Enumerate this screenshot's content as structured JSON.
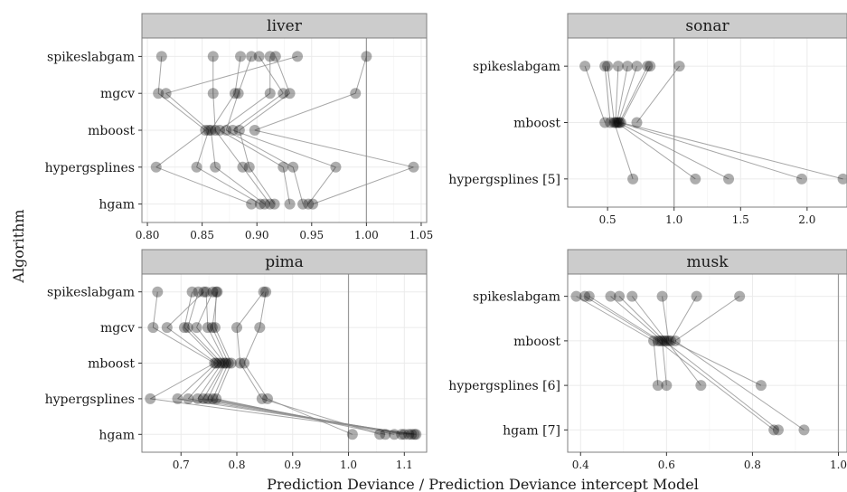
{
  "figure": {
    "xlabel": "Prediction Deviance / Prediction Deviance intercept Model",
    "ylabel": "Algorithm"
  },
  "chart_data": [
    {
      "type": "scatter",
      "title": "liver",
      "categories": [
        "spikeslabgam",
        "mgcv",
        "mboost",
        "hypergsplines",
        "hgam"
      ],
      "xticks": [
        "0.80",
        "0.85",
        "0.90",
        "0.95",
        "1.00",
        "1.05"
      ],
      "xticks_values": [
        0.8,
        0.85,
        0.9,
        0.95,
        1.0,
        1.05
      ],
      "xlim": [
        0.795,
        1.055
      ],
      "reference_line": 1.0,
      "points": {
        "spikeslabgam": [
          0.813,
          0.86,
          0.885,
          0.895,
          0.902,
          0.912,
          0.917,
          0.937,
          1.0
        ],
        "mgcv": [
          0.81,
          0.817,
          0.86,
          0.88,
          0.883,
          0.912,
          0.924,
          0.93,
          0.99
        ],
        "mboost": [
          0.853,
          0.856,
          0.858,
          0.862,
          0.866,
          0.872,
          0.878,
          0.884,
          0.898
        ],
        "hypergsplines": [
          0.808,
          0.845,
          0.862,
          0.887,
          0.893,
          0.924,
          0.933,
          0.972,
          1.043
        ],
        "hgam": [
          0.895,
          0.903,
          0.907,
          0.912,
          0.916,
          0.93,
          0.942,
          0.947,
          0.951
        ]
      },
      "links": [
        [
          "spikeslabgam",
          0.813,
          "mgcv",
          0.81
        ],
        [
          "spikeslabgam",
          0.86,
          "mgcv",
          0.86
        ],
        [
          "spikeslabgam",
          0.885,
          "mgcv",
          0.88
        ],
        [
          "spikeslabgam",
          0.895,
          "mgcv",
          0.883
        ],
        [
          "spikeslabgam",
          0.902,
          "mgcv",
          0.924
        ],
        [
          "spikeslabgam",
          0.912,
          "mgcv",
          0.912
        ],
        [
          "spikeslabgam",
          0.917,
          "mgcv",
          0.93
        ],
        [
          "spikeslabgam",
          0.937,
          "mgcv",
          0.817
        ],
        [
          "spikeslabgam",
          1.0,
          "mgcv",
          0.99
        ],
        [
          "mgcv",
          0.81,
          "mboost",
          0.853
        ],
        [
          "mgcv",
          0.817,
          "mboost",
          0.856
        ],
        [
          "mgcv",
          0.86,
          "mboost",
          0.862
        ],
        [
          "mgcv",
          0.88,
          "mboost",
          0.858
        ],
        [
          "mgcv",
          0.883,
          "mboost",
          0.872
        ],
        [
          "mgcv",
          0.912,
          "mboost",
          0.866
        ],
        [
          "mgcv",
          0.924,
          "mboost",
          0.878
        ],
        [
          "mgcv",
          0.93,
          "mboost",
          0.884
        ],
        [
          "mgcv",
          0.99,
          "mboost",
          0.898
        ],
        [
          "mboost",
          0.853,
          "hypergsplines",
          0.808
        ],
        [
          "mboost",
          0.856,
          "hypergsplines",
          0.845
        ],
        [
          "mboost",
          0.858,
          "hypergsplines",
          0.862
        ],
        [
          "mboost",
          0.862,
          "hypergsplines",
          0.887
        ],
        [
          "mboost",
          0.866,
          "hypergsplines",
          0.924
        ],
        [
          "mboost",
          0.872,
          "hypergsplines",
          0.933
        ],
        [
          "mboost",
          0.878,
          "hypergsplines",
          0.972
        ],
        [
          "mboost",
          0.884,
          "hypergsplines",
          0.893
        ],
        [
          "mboost",
          0.898,
          "hypergsplines",
          1.043
        ],
        [
          "hypergsplines",
          0.808,
          "hgam",
          0.895
        ],
        [
          "hypergsplines",
          0.845,
          "hgam",
          0.903
        ],
        [
          "hypergsplines",
          0.862,
          "hgam",
          0.907
        ],
        [
          "hypergsplines",
          0.887,
          "hgam",
          0.912
        ],
        [
          "hypergsplines",
          0.893,
          "hgam",
          0.916
        ],
        [
          "hypergsplines",
          0.924,
          "hgam",
          0.93
        ],
        [
          "hypergsplines",
          0.933,
          "hgam",
          0.942
        ],
        [
          "hypergsplines",
          0.972,
          "hgam",
          0.947
        ],
        [
          "hypergsplines",
          1.043,
          "hgam",
          0.951
        ]
      ]
    },
    {
      "type": "scatter",
      "title": "sonar",
      "categories": [
        "spikeslabgam",
        "mboost",
        "hypergsplines [5]"
      ],
      "xticks": [
        "0.5",
        "1.0",
        "1.5",
        "2.0"
      ],
      "xticks_values": [
        0.5,
        1.0,
        1.5,
        2.0
      ],
      "xlim": [
        0.2,
        2.3
      ],
      "reference_line": 1.0,
      "points": {
        "spikeslabgam": [
          0.33,
          0.48,
          0.5,
          0.58,
          0.65,
          0.72,
          0.8,
          0.82,
          1.04
        ],
        "mboost": [
          0.48,
          0.52,
          0.55,
          0.56,
          0.57,
          0.58,
          0.59,
          0.6,
          0.72
        ],
        "hypergsplines [5]": [
          0.69,
          1.16,
          1.41,
          1.96,
          2.27
        ]
      },
      "links": [
        [
          "spikeslabgam",
          0.33,
          "mboost",
          0.48
        ],
        [
          "spikeslabgam",
          0.48,
          "mboost",
          0.52
        ],
        [
          "spikeslabgam",
          0.5,
          "mboost",
          0.55
        ],
        [
          "spikeslabgam",
          0.58,
          "mboost",
          0.56
        ],
        [
          "spikeslabgam",
          0.65,
          "mboost",
          0.57
        ],
        [
          "spikeslabgam",
          0.72,
          "mboost",
          0.58
        ],
        [
          "spikeslabgam",
          0.8,
          "mboost",
          0.59
        ],
        [
          "spikeslabgam",
          0.82,
          "mboost",
          0.6
        ],
        [
          "spikeslabgam",
          1.04,
          "mboost",
          0.72
        ],
        [
          "mboost",
          0.55,
          "hypergsplines [5]",
          0.69
        ],
        [
          "mboost",
          0.57,
          "hypergsplines [5]",
          1.16
        ],
        [
          "mboost",
          0.58,
          "hypergsplines [5]",
          1.41
        ],
        [
          "mboost",
          0.59,
          "hypergsplines [5]",
          1.96
        ],
        [
          "mboost",
          0.6,
          "hypergsplines [5]",
          2.27
        ]
      ]
    },
    {
      "type": "scatter",
      "title": "pima",
      "categories": [
        "spikeslabgam",
        "mgcv",
        "mboost",
        "hypergsplines",
        "hgam"
      ],
      "xticks": [
        "0.7",
        "0.8",
        "0.9",
        "1.0",
        "1.1"
      ],
      "xticks_values": [
        0.7,
        0.8,
        0.9,
        1.0,
        1.1
      ],
      "xlim": [
        0.63,
        1.14
      ],
      "reference_line": 1.0,
      "points": {
        "spikeslabgam": [
          0.658,
          0.72,
          0.731,
          0.741,
          0.745,
          0.757,
          0.763,
          0.765,
          0.848,
          0.852
        ],
        "mgcv": [
          0.65,
          0.675,
          0.706,
          0.712,
          0.728,
          0.748,
          0.756,
          0.761,
          0.8,
          0.841
        ],
        "mboost": [
          0.76,
          0.763,
          0.768,
          0.773,
          0.778,
          0.78,
          0.785,
          0.79,
          0.806,
          0.813
        ],
        "hypergsplines": [
          0.645,
          0.694,
          0.713,
          0.73,
          0.74,
          0.748,
          0.757,
          0.763,
          0.845,
          0.855
        ],
        "hgam": [
          1.007,
          1.056,
          1.066,
          1.082,
          1.095,
          1.1,
          1.108,
          1.113,
          1.118,
          1.121
        ]
      },
      "links": [
        [
          "spikeslabgam",
          0.658,
          "mgcv",
          0.65
        ],
        [
          "spikeslabgam",
          0.72,
          "mgcv",
          0.706
        ],
        [
          "spikeslabgam",
          0.731,
          "mgcv",
          0.712
        ],
        [
          "spikeslabgam",
          0.741,
          "mgcv",
          0.675
        ],
        [
          "spikeslabgam",
          0.745,
          "mgcv",
          0.748
        ],
        [
          "spikeslabgam",
          0.757,
          "mgcv",
          0.728
        ],
        [
          "spikeslabgam",
          0.763,
          "mgcv",
          0.761
        ],
        [
          "spikeslabgam",
          0.765,
          "mgcv",
          0.756
        ],
        [
          "spikeslabgam",
          0.848,
          "mgcv",
          0.8
        ],
        [
          "spikeslabgam",
          0.852,
          "mgcv",
          0.841
        ],
        [
          "mgcv",
          0.65,
          "mboost",
          0.76
        ],
        [
          "mgcv",
          0.675,
          "mboost",
          0.763
        ],
        [
          "mgcv",
          0.706,
          "mboost",
          0.768
        ],
        [
          "mgcv",
          0.712,
          "mboost",
          0.773
        ],
        [
          "mgcv",
          0.728,
          "mboost",
          0.778
        ],
        [
          "mgcv",
          0.748,
          "mboost",
          0.78
        ],
        [
          "mgcv",
          0.756,
          "mboost",
          0.785
        ],
        [
          "mgcv",
          0.761,
          "mboost",
          0.79
        ],
        [
          "mgcv",
          0.8,
          "mboost",
          0.806
        ],
        [
          "mgcv",
          0.841,
          "mboost",
          0.813
        ],
        [
          "mboost",
          0.76,
          "hypergsplines",
          0.645
        ],
        [
          "mboost",
          0.763,
          "hypergsplines",
          0.694
        ],
        [
          "mboost",
          0.768,
          "hypergsplines",
          0.713
        ],
        [
          "mboost",
          0.773,
          "hypergsplines",
          0.73
        ],
        [
          "mboost",
          0.778,
          "hypergsplines",
          0.74
        ],
        [
          "mboost",
          0.78,
          "hypergsplines",
          0.748
        ],
        [
          "mboost",
          0.785,
          "hypergsplines",
          0.757
        ],
        [
          "mboost",
          0.79,
          "hypergsplines",
          0.763
        ],
        [
          "mboost",
          0.806,
          "hypergsplines",
          0.845
        ],
        [
          "mboost",
          0.813,
          "hypergsplines",
          0.855
        ],
        [
          "hypergsplines",
          0.645,
          "hgam",
          1.121
        ],
        [
          "hypergsplines",
          0.694,
          "hgam",
          1.118
        ],
        [
          "hypergsplines",
          0.713,
          "hgam",
          1.113
        ],
        [
          "hypergsplines",
          0.73,
          "hgam",
          1.108
        ],
        [
          "hypergsplines",
          0.74,
          "hgam",
          1.1
        ],
        [
          "hypergsplines",
          0.748,
          "hgam",
          1.095
        ],
        [
          "hypergsplines",
          0.757,
          "hgam",
          1.082
        ],
        [
          "hypergsplines",
          0.763,
          "hgam",
          1.066
        ],
        [
          "hypergsplines",
          0.845,
          "hgam",
          1.056
        ],
        [
          "hypergsplines",
          0.855,
          "hgam",
          1.007
        ]
      ]
    },
    {
      "type": "scatter",
      "title": "musk",
      "categories": [
        "spikeslabgam",
        "mboost",
        "hypergsplines [6]",
        "hgam [7]"
      ],
      "xticks": [
        "0.4",
        "0.6",
        "0.8",
        "1.0"
      ],
      "xticks_values": [
        0.4,
        0.6,
        0.8,
        1.0
      ],
      "xlim": [
        0.37,
        1.02
      ],
      "reference_line": 1.0,
      "points": {
        "spikeslabgam": [
          0.39,
          0.41,
          0.42,
          0.47,
          0.49,
          0.52,
          0.59,
          0.67,
          0.77
        ],
        "mboost": [
          0.57,
          0.58,
          0.585,
          0.59,
          0.595,
          0.6,
          0.605,
          0.61,
          0.62
        ],
        "hypergsplines [6]": [
          0.58,
          0.6,
          0.68,
          0.82
        ],
        "hgam [7]": [
          0.85,
          0.86,
          0.92
        ]
      },
      "links": [
        [
          "spikeslabgam",
          0.39,
          "mboost",
          0.57
        ],
        [
          "spikeslabgam",
          0.41,
          "mboost",
          0.58
        ],
        [
          "spikeslabgam",
          0.42,
          "mboost",
          0.585
        ],
        [
          "spikeslabgam",
          0.47,
          "mboost",
          0.59
        ],
        [
          "spikeslabgam",
          0.49,
          "mboost",
          0.595
        ],
        [
          "spikeslabgam",
          0.52,
          "mboost",
          0.6
        ],
        [
          "spikeslabgam",
          0.59,
          "mboost",
          0.605
        ],
        [
          "spikeslabgam",
          0.67,
          "mboost",
          0.61
        ],
        [
          "spikeslabgam",
          0.77,
          "mboost",
          0.62
        ],
        [
          "mboost",
          0.57,
          "hypergsplines [6]",
          0.58
        ],
        [
          "mboost",
          0.59,
          "hypergsplines [6]",
          0.6
        ],
        [
          "mboost",
          0.6,
          "hypergsplines [6]",
          0.68
        ],
        [
          "mboost",
          0.61,
          "hypergsplines [6]",
          0.82
        ],
        [
          "mboost",
          0.58,
          "hgam [7]",
          0.85
        ],
        [
          "mboost",
          0.595,
          "hgam [7]",
          0.86
        ],
        [
          "mboost",
          0.62,
          "hgam [7]",
          0.92
        ]
      ]
    }
  ]
}
